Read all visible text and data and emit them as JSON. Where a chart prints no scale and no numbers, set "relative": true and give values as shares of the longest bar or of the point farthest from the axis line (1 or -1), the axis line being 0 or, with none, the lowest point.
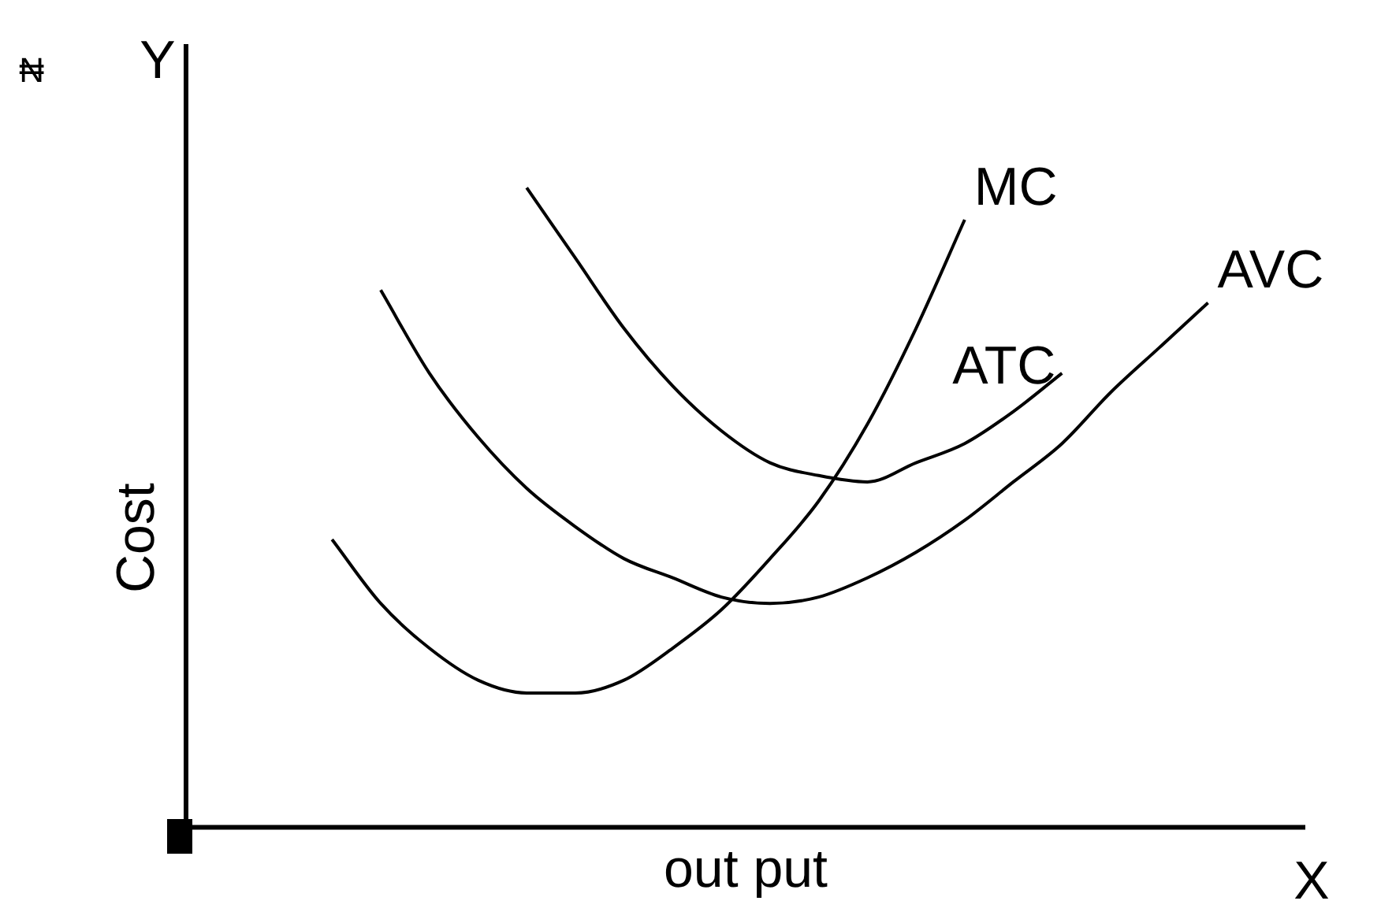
{
  "chart_data": {
    "type": "line",
    "relative": true,
    "xlabel": "out put",
    "ylabel": "Cost",
    "annotations": [
      "₦",
      "Y",
      "X"
    ],
    "categories": [
      null,
      null,
      null,
      null,
      null,
      null,
      null,
      null,
      null,
      null,
      null,
      null,
      null,
      null,
      null,
      null,
      null,
      null,
      null,
      null,
      null,
      null,
      null,
      null
    ],
    "series": [
      {
        "name": "MC",
        "color": "#000000",
        "values": [
          null,
          null,
          null,
          0.45,
          0.35,
          0.28,
          0.23,
          0.21,
          0.21,
          0.23,
          0.28,
          0.34,
          0.42,
          0.51,
          0.63,
          0.78,
          0.95,
          null,
          null,
          null,
          null,
          null,
          null,
          null
        ]
      },
      {
        "name": "ATC",
        "color": "#000000",
        "values": [
          null,
          null,
          null,
          null,
          null,
          null,
          null,
          1.0,
          0.89,
          0.78,
          0.69,
          0.62,
          0.57,
          0.55,
          0.54,
          0.57,
          0.6,
          0.65,
          0.71,
          null,
          null,
          null,
          null,
          null
        ]
      },
      {
        "name": "AVC",
        "color": "#000000",
        "values": [
          null,
          null,
          null,
          null,
          0.84,
          0.71,
          0.61,
          0.53,
          0.47,
          0.42,
          0.39,
          0.36,
          0.35,
          0.36,
          0.39,
          0.43,
          0.48,
          0.54,
          0.6,
          0.68,
          0.75,
          0.82,
          null,
          null
        ]
      }
    ],
    "grid": false,
    "legend": false,
    "marker": "none",
    "line_style": "solid"
  }
}
